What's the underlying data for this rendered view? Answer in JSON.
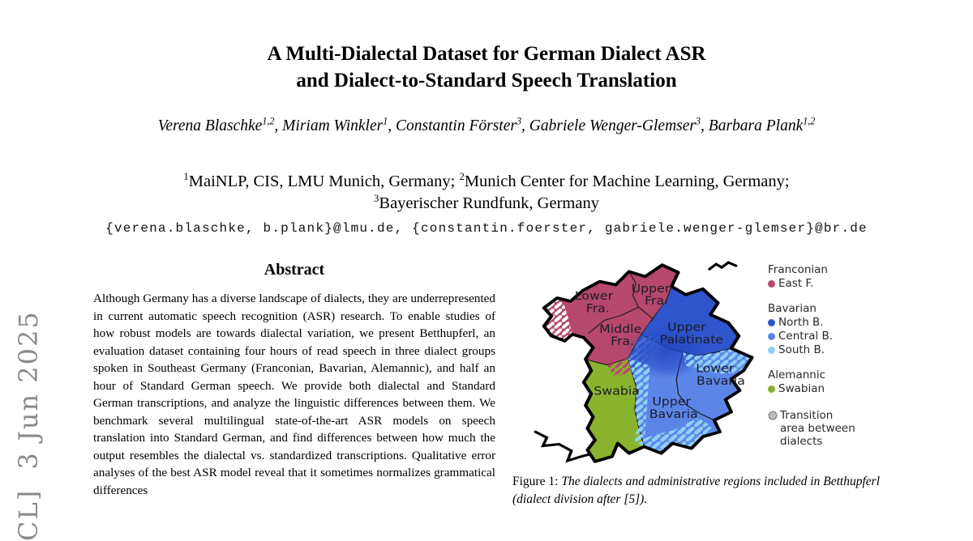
{
  "watermark": {
    "text": "CL]  3 Jun 2025",
    "color": "#8a8a8a"
  },
  "title": {
    "line1": "A Multi-Dialectal Dataset for German Dialect ASR",
    "line2": "and Dialect-to-Standard Speech Translation"
  },
  "authors": {
    "list": [
      {
        "name": "Verena Blaschke",
        "sup": "1,2"
      },
      {
        "name": "Miriam Winkler",
        "sup": "1"
      },
      {
        "name": "Constantin Förster",
        "sup": "3"
      },
      {
        "name": "Gabriele Wenger-Glemser",
        "sup": "3"
      },
      {
        "name": "Barbara Plank",
        "sup": "1,2"
      }
    ]
  },
  "affiliations": {
    "lines": [
      [
        {
          "sup": "1",
          "text": "MaiNLP, CIS, LMU Munich, Germany; "
        },
        {
          "sup": "2",
          "text": "Munich Center for Machine Learning, Germany;"
        }
      ],
      [
        {
          "sup": "3",
          "text": "Bayerischer Rundfunk, Germany"
        }
      ]
    ]
  },
  "emails": "{verena.blaschke, b.plank}@lmu.de, {constantin.foerster, gabriele.wenger-glemser}@br.de",
  "abstract": {
    "heading": "Abstract",
    "text": "Although Germany has a diverse landscape of dialects, they are underrepresented in current automatic speech recognition (ASR) research. To enable studies of how robust models are towards dialectal variation, we present Betthupferl, an evaluation dataset containing four hours of read speech in three dialect groups spoken in Southeast Germany (Franconian, Bavarian, Alemannic), and half an hour of Standard German speech. We provide both dialectal and Standard German transcriptions, and analyze the linguistic differences between them. We benchmark several multilingual state-of-the-art ASR models on speech translation into Standard German, and find differences between how much the output resembles the dialectal vs. standardized transcriptions. Qualitative error analyses of the best ASR model reveal that it sometimes normalizes grammatical differences"
  },
  "figure": {
    "caption_label": "Figure 1:",
    "caption_text": "The dialects and administrative regions included in Betthupferl (dialect division after [5]).",
    "map": {
      "regions": [
        {
          "name": "Lower Franconia",
          "lines": [
            "Lower",
            "Fra."
          ]
        },
        {
          "name": "Upper Franconia",
          "lines": [
            "Upper",
            "Fra."
          ]
        },
        {
          "name": "Middle Franconia",
          "lines": [
            "Middle",
            "Fra."
          ]
        },
        {
          "name": "Upper Palatinate",
          "lines": [
            "Upper",
            "Palatinate"
          ]
        },
        {
          "name": "Lower Bavaria",
          "lines": [
            "Lower",
            "Bavaria"
          ]
        },
        {
          "name": "Upper Bavaria",
          "lines": [
            "Upper",
            "Bavaria"
          ]
        },
        {
          "name": "Swabia",
          "lines": [
            "Swabia"
          ]
        }
      ]
    },
    "legend": {
      "groups": [
        {
          "header": "Franconian",
          "items": [
            {
              "label": "East F.",
              "color": "#b5486c"
            }
          ]
        },
        {
          "header": "Bavarian",
          "items": [
            {
              "label": "North B.",
              "color": "#2e55cc"
            },
            {
              "label": "Central B.",
              "color": "#5c85e8"
            },
            {
              "label": "South B.",
              "color": "#8ed2f5"
            }
          ]
        },
        {
          "header": "Alemannic",
          "items": [
            {
              "label": "Swabian",
              "color": "#8ab32d"
            }
          ]
        }
      ],
      "transition_label": "Transition area between dialects"
    }
  },
  "colors": {
    "east_franconian": "#b5486c",
    "north_bavarian": "#2e55cc",
    "central_bavarian": "#5c85e8",
    "south_bavarian": "#8ed2f5",
    "swabian": "#8ab32d"
  }
}
